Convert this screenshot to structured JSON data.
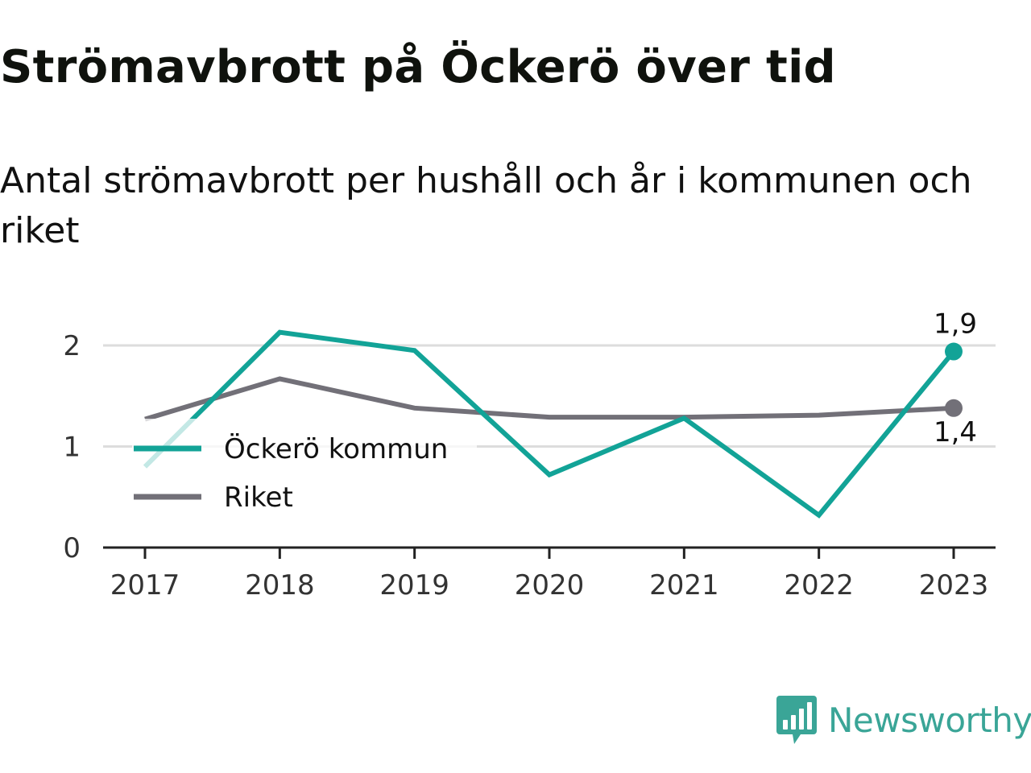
{
  "title": "Strömavbrott på Öckerö över tid",
  "subtitle": "Antal strömavbrott per hushåll och år i kommunen och riket",
  "colors": {
    "ockero": "#12a397",
    "riket": "#727078",
    "grid": "#dddddd",
    "axis": "#222222",
    "brand": "#3aa597"
  },
  "brand": {
    "name": "Newsworthy",
    "icon": "bar-chart-speech-bubble-icon"
  },
  "chart_data": {
    "type": "line",
    "x": [
      "2017",
      "2018",
      "2019",
      "2020",
      "2021",
      "2022",
      "2023"
    ],
    "ylim": [
      0,
      2.2
    ],
    "yticks": [
      "0",
      "1",
      "2"
    ],
    "grid": true,
    "legend_position": "left",
    "series": [
      {
        "name": "Öckerö kommun",
        "color": "#12a397",
        "values": [
          0.8,
          2.13,
          1.95,
          0.72,
          1.28,
          0.32,
          1.94
        ],
        "end_label": "1,9"
      },
      {
        "name": "Riket",
        "color": "#727078",
        "values": [
          1.27,
          1.67,
          1.38,
          1.29,
          1.29,
          1.31,
          1.38
        ],
        "end_label": "1,4"
      }
    ]
  }
}
